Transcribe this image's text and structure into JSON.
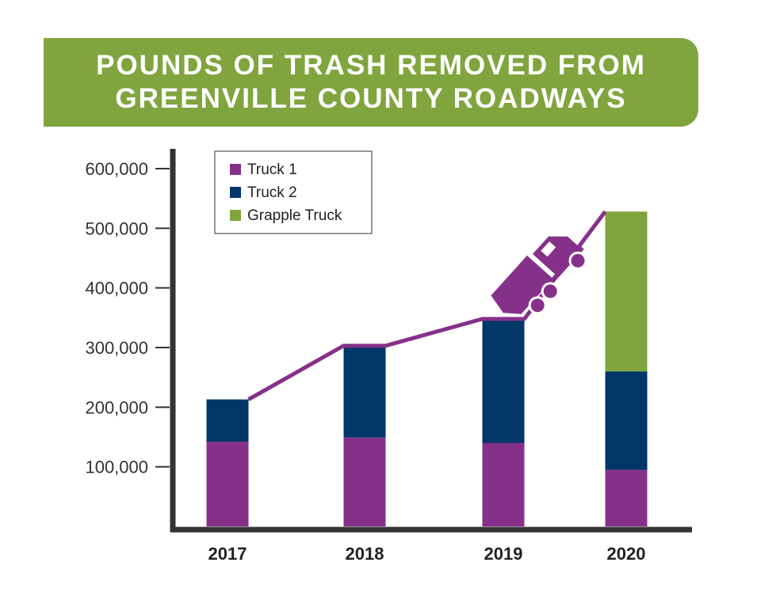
{
  "title": {
    "line1": "POUNDS OF TRASH REMOVED FROM",
    "line2": "GREENVILLE COUNTY ROADWAYS"
  },
  "colors": {
    "banner": "#81a53e",
    "truck1": "#85318a",
    "truck2": "#003668",
    "grapple": "#81a53e",
    "trend": "#85318a",
    "axis": "#333333"
  },
  "chart_data": {
    "type": "bar",
    "stacked": true,
    "categories": [
      "2017",
      "2018",
      "2019",
      "2020"
    ],
    "series": [
      {
        "name": "Truck 1",
        "values": [
          142000,
          149000,
          140000,
          95000
        ]
      },
      {
        "name": "Truck 2",
        "values": [
          71000,
          154000,
          208000,
          165000
        ]
      },
      {
        "name": "Grapple Truck",
        "values": [
          0,
          0,
          0,
          268000
        ]
      }
    ],
    "totals_line": [
      213000,
      303000,
      348000,
      528000
    ],
    "yticks": [
      "100,000",
      "200,000",
      "300,000",
      "400,000",
      "500,000",
      "600,000"
    ],
    "ytick_values": [
      100000,
      200000,
      300000,
      400000,
      500000,
      600000
    ],
    "ylim": [
      0,
      620000
    ],
    "legend_position": "top-left",
    "annotation_icon": "dump-truck-icon"
  }
}
